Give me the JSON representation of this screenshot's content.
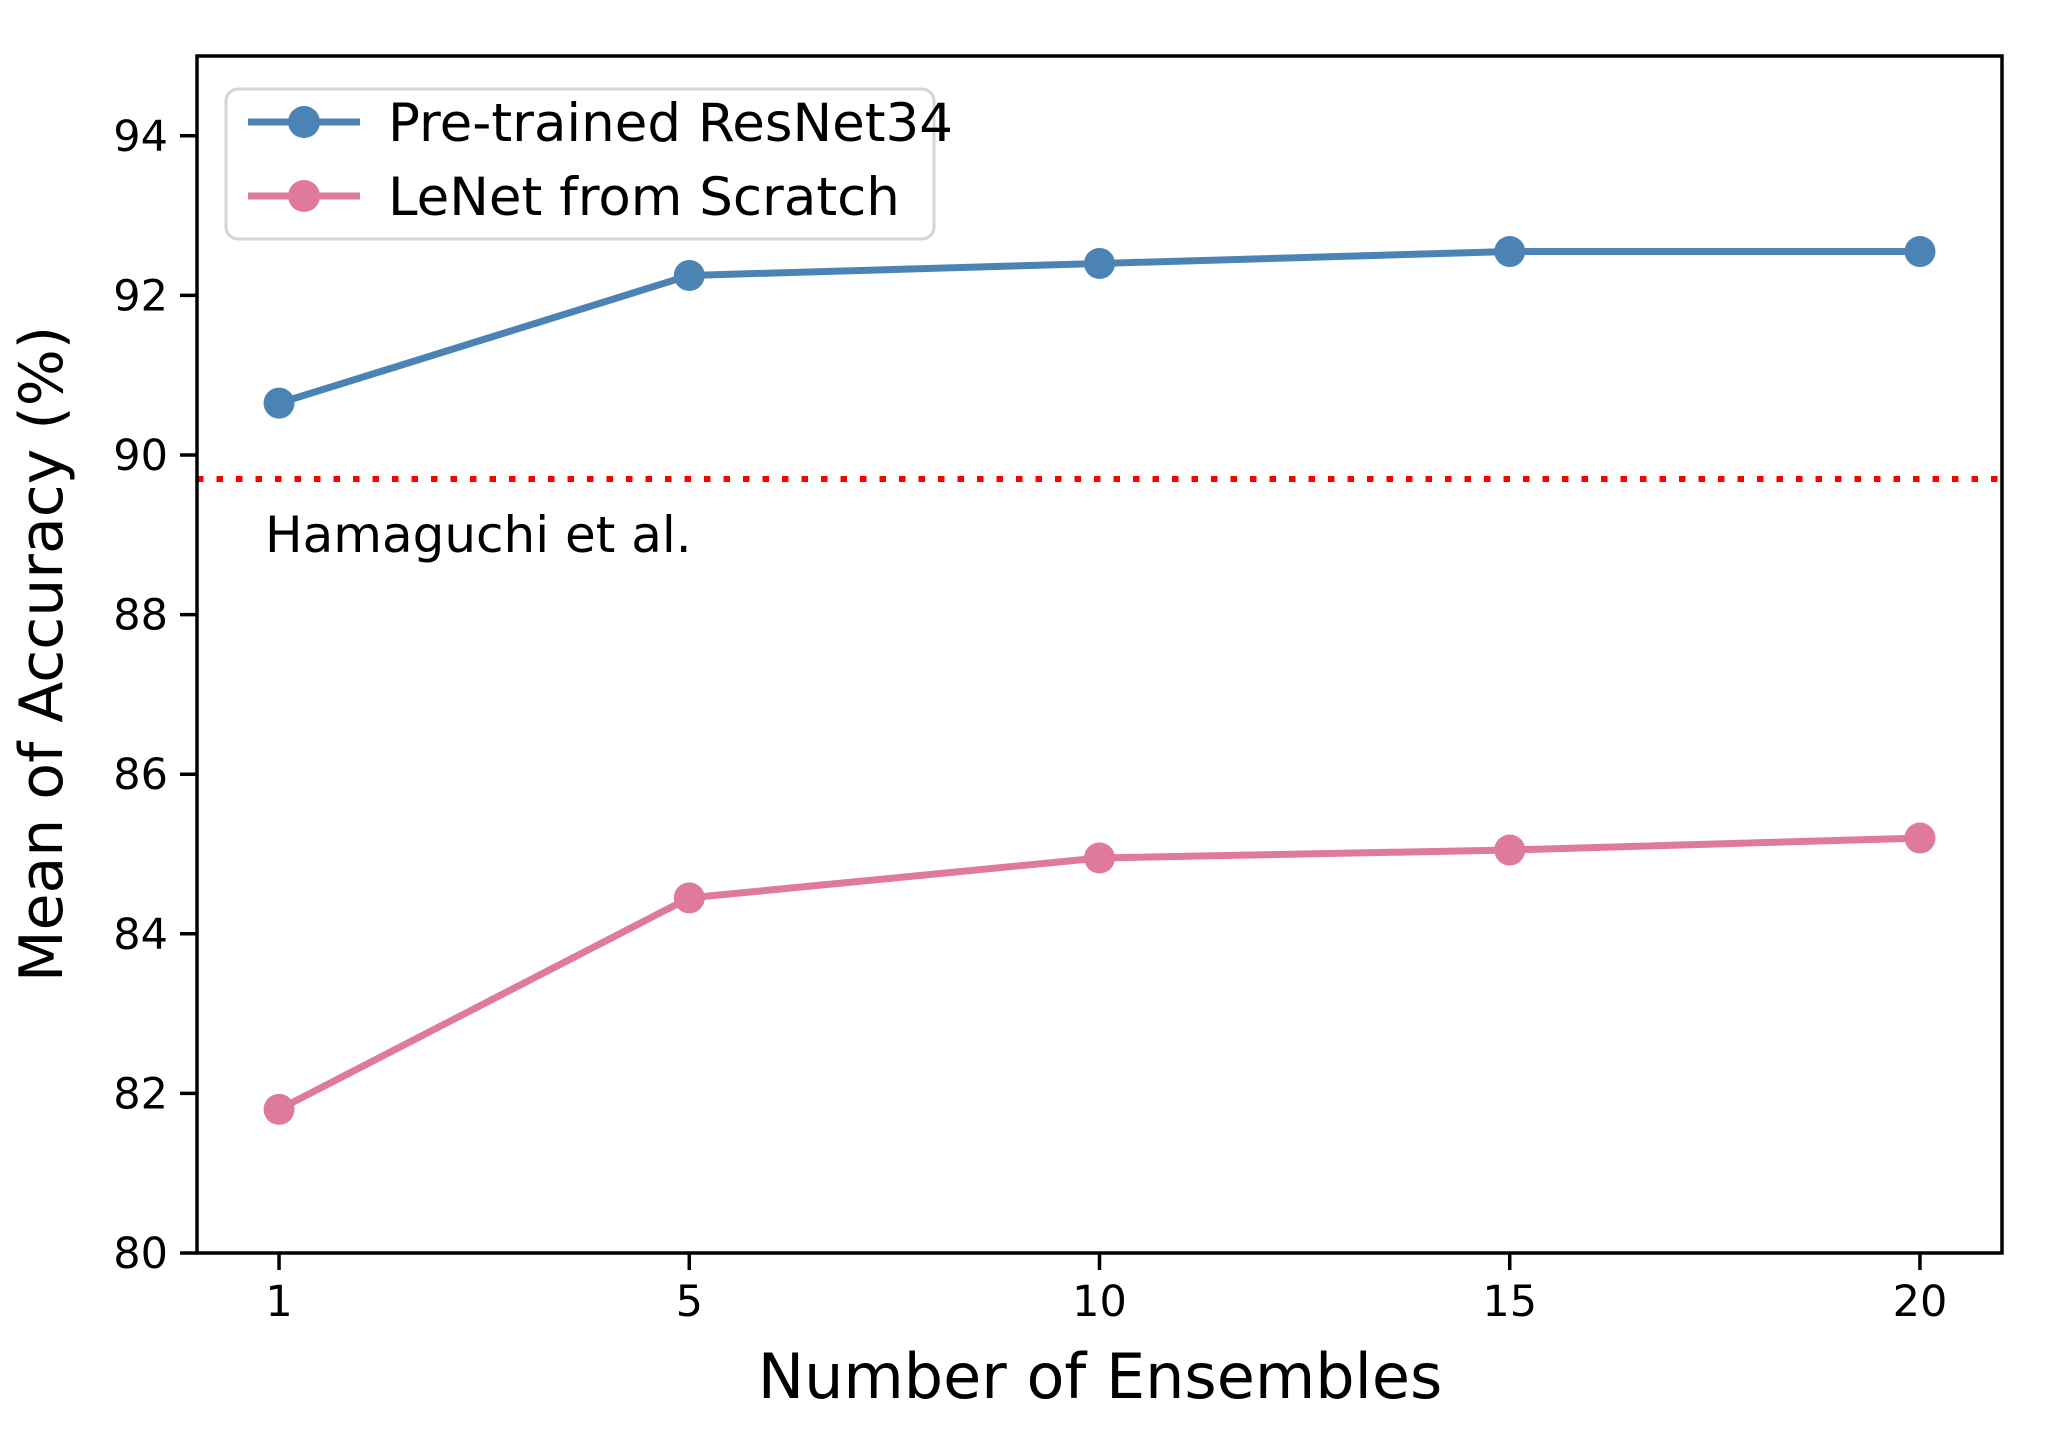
{
  "chart_data": {
    "type": "line",
    "title": "",
    "xlabel": "Number of Ensembles",
    "ylabel": "Mean of Accuracy (%)",
    "categories": [
      "1",
      "5",
      "10",
      "15",
      "20"
    ],
    "series": [
      {
        "name": "Pre-trained ResNet34",
        "color": "#4c83b5",
        "marker": "circle",
        "values": [
          90.65,
          92.25,
          92.4,
          92.55,
          92.55
        ]
      },
      {
        "name": "LeNet from Scratch",
        "color": "#df7a9b",
        "marker": "circle",
        "values": [
          81.8,
          84.45,
          84.95,
          85.05,
          85.2
        ]
      }
    ],
    "reference_line": {
      "label": "Hamaguchi et al.",
      "value": 89.7,
      "color": "#ff0000",
      "style": "dotted"
    },
    "ylim": [
      80,
      95
    ],
    "yticks": [
      "80",
      "82",
      "84",
      "86",
      "88",
      "90",
      "92",
      "94"
    ],
    "ytick_values": [
      80,
      82,
      84,
      86,
      88,
      90,
      92,
      94
    ],
    "grid": false,
    "legend_position": "upper-left",
    "axis_color": "#000000",
    "legend_border_color": "#d5d5d5",
    "background_color": "#ffffff"
  }
}
